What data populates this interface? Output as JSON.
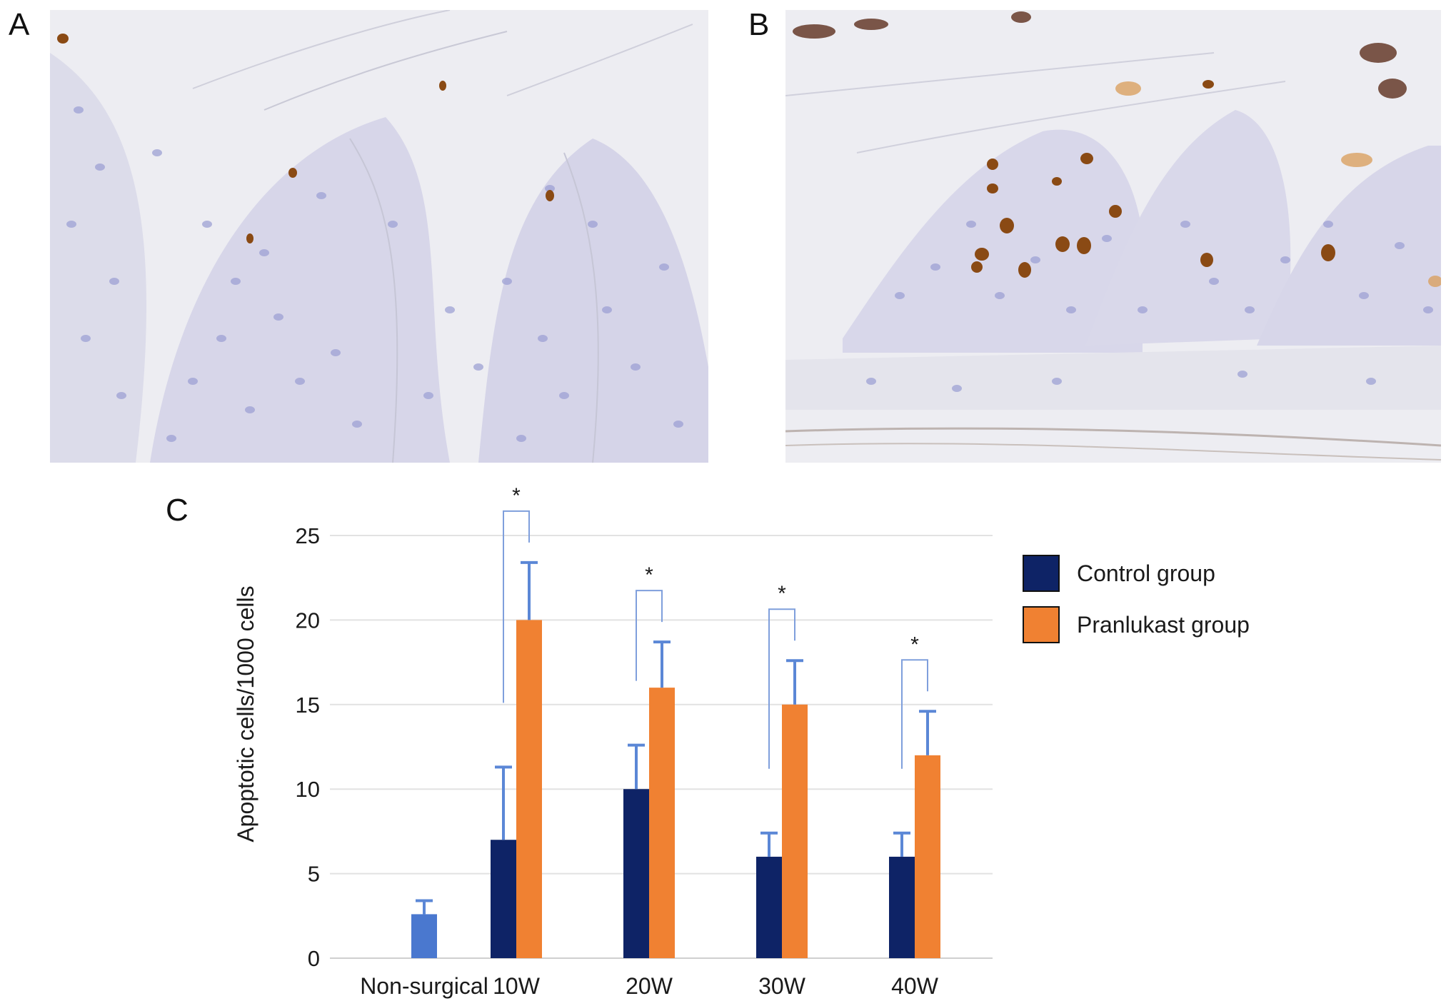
{
  "panels": {
    "a_label": "A",
    "b_label": "B",
    "c_label": "C"
  },
  "colors": {
    "control": "#0e2366",
    "pranlukast": "#f08132",
    "non_surgical": "#4a78cf",
    "error_bar": "#5b87d6",
    "bracket": "#7f9fdc",
    "tissue_background": "#ececf1",
    "hematoxylin": "#8d91cc",
    "dab_stain": "#8a4a14"
  },
  "chart_data": {
    "type": "bar",
    "categories": [
      "Non-surgical",
      "10W",
      "20W",
      "30W",
      "40W"
    ],
    "series": [
      {
        "name": "Control group",
        "values": [
          null,
          7,
          10,
          6,
          6
        ],
        "errors": [
          null,
          4.3,
          2.6,
          1.4,
          1.4
        ]
      },
      {
        "name": "Pranlukast group",
        "values": [
          null,
          20,
          16,
          15,
          12
        ],
        "errors": [
          null,
          3.4,
          2.7,
          2.6,
          2.6
        ]
      },
      {
        "name": "",
        "values": [
          2.6,
          null,
          null,
          null,
          null
        ],
        "errors": [
          0.8,
          null,
          null,
          null,
          null
        ]
      }
    ],
    "significance": [
      {
        "category": "10W",
        "mark": "*"
      },
      {
        "category": "20W",
        "mark": "*"
      },
      {
        "category": "30W",
        "mark": "*"
      },
      {
        "category": "40W",
        "mark": "*"
      }
    ],
    "ylabel": "Apoptotic cells/1000 cells",
    "xlabel": "",
    "ylim": [
      0,
      25
    ],
    "yticks": [
      0,
      5,
      10,
      15,
      20,
      25
    ],
    "grid": true,
    "legend_position": "right"
  }
}
